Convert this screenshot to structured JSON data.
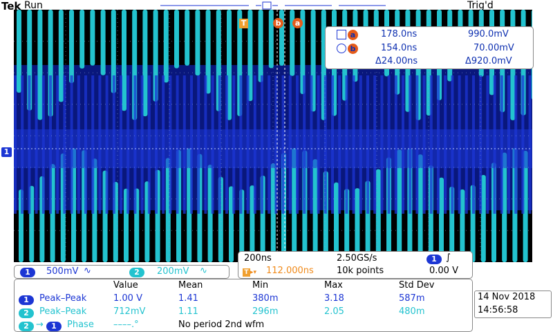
{
  "header": {
    "brand": "Tek",
    "status": "Run",
    "trigger_state": "Trig'd"
  },
  "markers": {
    "trigger": "T",
    "cursor_b": "b",
    "cursor_a": "a",
    "ch1_level": "1"
  },
  "cursors": {
    "a": {
      "label": "a",
      "time": "178.0ns",
      "value": "990.0mV"
    },
    "b": {
      "label": "b",
      "time": "154.0ns",
      "value": "70.00mV"
    },
    "delta_time": "Δ24.00ns",
    "delta_value": "Δ920.0mV"
  },
  "channels": [
    {
      "id": "1",
      "scale": "500mV",
      "coupling_glyph": "∿",
      "color": "#1c36d4"
    },
    {
      "id": "2",
      "scale": "200mV",
      "coupling_glyph": "∿",
      "color": "#23c3cf"
    }
  ],
  "horizontal": {
    "time_per_div": "200ns",
    "sample_rate": "2.50GS/s",
    "trigger_delay": "112.000ns",
    "record_length": "10k points",
    "trigger_channel": "1",
    "trigger_slope_glyph": "∫",
    "trigger_level": "0.00 V"
  },
  "measurements": {
    "headers": [
      "Value",
      "Mean",
      "Min",
      "Max",
      "Std Dev"
    ],
    "rows": [
      {
        "ch": "1",
        "name": "Peak–Peak",
        "value": "1.00 V",
        "mean": "1.41",
        "min": "380m",
        "max": "3.18",
        "std": "587m"
      },
      {
        "ch": "2",
        "name": "Peak–Peak",
        "value": "712mV",
        "mean": "1.11",
        "min": "296m",
        "max": "2.05",
        "std": "480m"
      }
    ],
    "phase": {
      "ch_from": "2",
      "ch_to": "1",
      "arrow": "→",
      "name": "Phase",
      "value": "––––.°",
      "note": "No period 2nd wfm"
    }
  },
  "datetime": {
    "date": "14 Nov 2018",
    "time": "14:56:58"
  },
  "colors": {
    "ch1": "#1c36d4",
    "ch1_dark": "#0a1a8a",
    "ch2": "#23c3cf",
    "cursor": "#e55b1a",
    "trigger": "#f0a030"
  }
}
